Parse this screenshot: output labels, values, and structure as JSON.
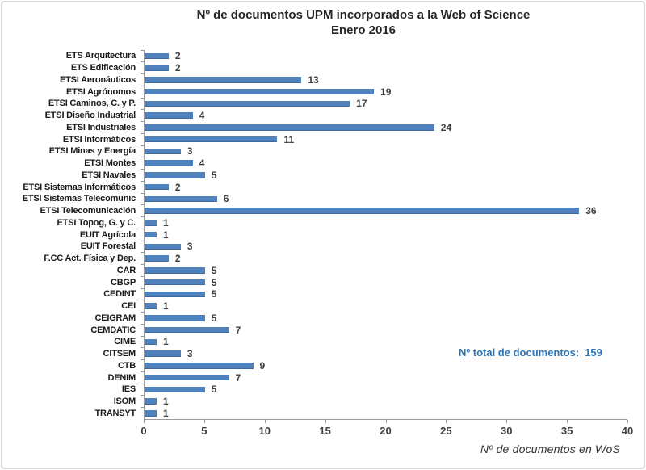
{
  "window": {
    "background": "#ffffff",
    "frame_border_color": "#d9d9d9"
  },
  "chart_data": {
    "type": "bar",
    "orientation": "horizontal",
    "title": "Nº de documentos UPM incorporados a la Web of Science",
    "subtitle": "Enero 2016",
    "xlabel": "Nº de documentos en WoS",
    "ylabel": "",
    "xlim": [
      0,
      40
    ],
    "xticks": [
      0,
      5,
      10,
      15,
      20,
      25,
      30,
      35,
      40
    ],
    "grid": false,
    "legend": "none",
    "bar_color": "#4F81BD",
    "axis_color": "#9b9b9b",
    "categories": [
      "ETS Arquitectura",
      "ETS Edificación",
      "ETSI Aeronáuticos",
      "ETSI Agrónomos",
      "ETSI Caminos, C. y P.",
      "ETSI Diseño Industrial",
      "ETSI Industriales",
      "ETSI Informáticos",
      "ETSI Minas y Energía",
      "ETSI Montes",
      "ETSI Navales",
      "ETSI Sistemas Informáticos",
      "ETSI Sistemas Telecomunic",
      "ETSI Telecomunicación",
      "ETSI Topog, G. y C.",
      "EUIT Agrícola",
      "EUIT Forestal",
      "F.CC Act. Física y Dep.",
      "CAR",
      "CBGP",
      "CEDINT",
      "CEI",
      "CEIGRAM",
      "CEMDATIC",
      "CIME",
      "CITSEM",
      "CTB",
      "DENIM",
      "IES",
      "ISOM",
      "TRANSYT"
    ],
    "values": [
      2,
      2,
      13,
      19,
      17,
      4,
      24,
      11,
      3,
      4,
      5,
      2,
      6,
      36,
      1,
      1,
      3,
      2,
      5,
      5,
      5,
      1,
      5,
      7,
      1,
      3,
      9,
      7,
      5,
      1,
      1
    ],
    "annotation": {
      "label": "Nº total de documentos:",
      "value": "159",
      "color": "#2E75B6"
    }
  }
}
